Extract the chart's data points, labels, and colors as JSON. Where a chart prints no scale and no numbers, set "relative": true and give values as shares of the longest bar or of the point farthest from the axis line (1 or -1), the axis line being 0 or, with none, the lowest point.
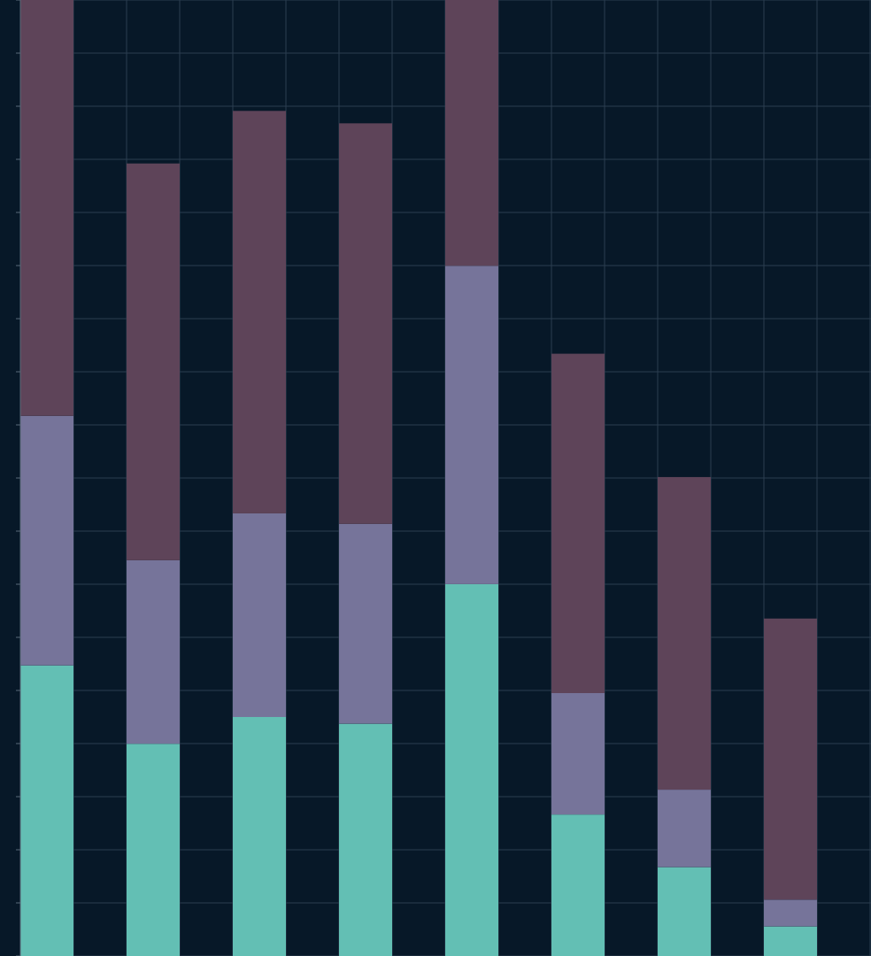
{
  "chart_data": {
    "type": "bar",
    "stacked": true,
    "relative": true,
    "grid": true,
    "categories": [
      null,
      null,
      null,
      null,
      null,
      null,
      null,
      null
    ],
    "series": [
      {
        "color": "#63bfb4",
        "values": [
          0.304,
          0.222,
          0.25,
          0.243,
          0.389,
          0.148,
          0.093,
          0.031
        ]
      },
      {
        "color": "#76749a",
        "values": [
          0.261,
          0.192,
          0.213,
          0.209,
          0.333,
          0.127,
          0.081,
          0.028
        ]
      },
      {
        "color": "#5e4459",
        "values": [
          0.435,
          0.415,
          0.421,
          0.419,
          0.278,
          0.355,
          0.327,
          0.294
        ]
      }
    ]
  }
}
